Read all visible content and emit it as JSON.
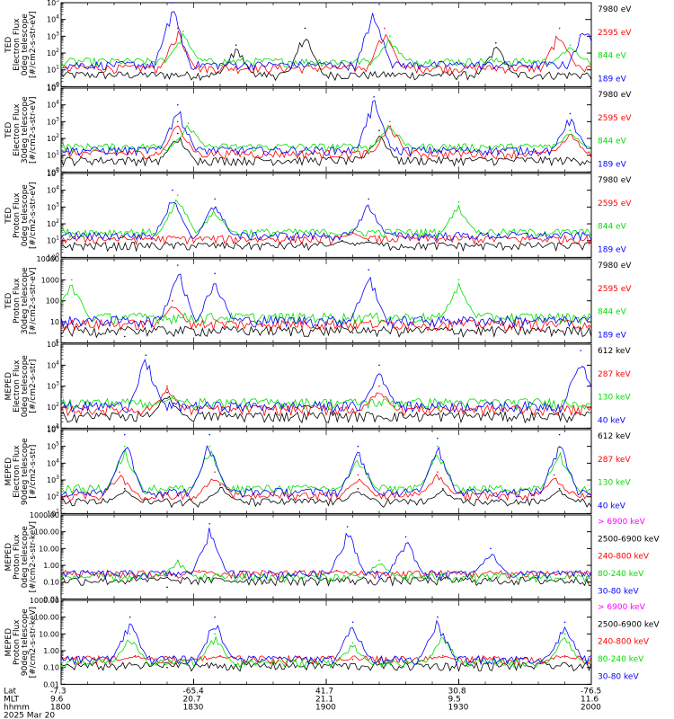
{
  "chart_data": [
    {
      "type": "line",
      "ylabel": [
        "TED",
        "Electron Flux",
        "0deg telescope",
        "[#/cm2-s-str-eV]"
      ],
      "yscale": "log",
      "ylim": [
        1,
        100000
      ],
      "y_ticks": [
        "10^0",
        "10^1",
        "10^2",
        "10^3",
        "10^4",
        "10^5"
      ],
      "series": [
        {
          "name": "7980 eV",
          "color": "#000000",
          "spikes": [
            [
              0.33,
              300
            ],
            [
              0.46,
              3000
            ],
            [
              0.82,
              400
            ]
          ]
        },
        {
          "name": "2595 eV",
          "color": "#ff0000",
          "spikes": [
            [
              0.22,
              3000
            ],
            [
              0.61,
              3000
            ],
            [
              0.94,
              3000
            ]
          ]
        },
        {
          "name": "844 eV",
          "color": "#00dd00",
          "spikes": [
            [
              0.23,
              2000
            ],
            [
              0.62,
              1000
            ],
            [
              0.96,
              300
            ]
          ]
        },
        {
          "name": "189 eV",
          "color": "#0000ff",
          "spikes": [
            [
              0.21,
              100000
            ],
            [
              0.59,
              100000
            ],
            [
              0.99,
              10000
            ]
          ]
        }
      ]
    },
    {
      "type": "line",
      "ylabel": [
        "TED",
        "Electron Flux",
        "30deg telescope",
        "[#/cm2-s-str-eV]"
      ],
      "yscale": "log",
      "ylim": [
        1,
        100000
      ],
      "y_ticks": [
        "10^0",
        "10^1",
        "10^2",
        "10^3",
        "10^4",
        "10^5"
      ],
      "series": [
        {
          "name": "7980 eV",
          "color": "#000000",
          "spikes": [
            [
              0.22,
              200
            ],
            [
              0.6,
              300
            ]
          ]
        },
        {
          "name": "2595 eV",
          "color": "#ff0000",
          "spikes": [
            [
              0.22,
              1000
            ],
            [
              0.62,
              1000
            ],
            [
              0.96,
              300
            ]
          ]
        },
        {
          "name": "844 eV",
          "color": "#00dd00",
          "spikes": [
            [
              0.24,
              800
            ],
            [
              0.62,
              1000
            ],
            [
              0.96,
              300
            ]
          ]
        },
        {
          "name": "189 eV",
          "color": "#0000ff",
          "spikes": [
            [
              0.22,
              10000
            ],
            [
              0.59,
              30000
            ],
            [
              0.96,
              3000
            ]
          ]
        }
      ]
    },
    {
      "type": "line",
      "ylabel": [
        "TED",
        "Proton Flux",
        "0deg telescope",
        "[#/cm2-s-str-eV]"
      ],
      "yscale": "log",
      "ylim": [
        1,
        100000
      ],
      "y_ticks": [
        "10^0",
        "10^1",
        "10^2",
        "10^3",
        "10^4",
        "10^5"
      ],
      "series": [
        {
          "name": "7980 eV",
          "color": "#000000",
          "spikes": [
            [
              0.53,
              10
            ],
            [
              0.58,
              10
            ]
          ]
        },
        {
          "name": "2595 eV",
          "color": "#ff0000",
          "spikes": [
            [
              0.55,
              30
            ]
          ]
        },
        {
          "name": "844 eV",
          "color": "#00dd00",
          "spikes": [
            [
              0.22,
              5000
            ],
            [
              0.29,
              1000
            ],
            [
              0.75,
              2000
            ]
          ]
        },
        {
          "name": "189 eV",
          "color": "#0000ff",
          "spikes": [
            [
              0.21,
              10000
            ],
            [
              0.29,
              3000
            ],
            [
              0.58,
              3000
            ]
          ]
        }
      ]
    },
    {
      "type": "line",
      "ylabel": [
        "TED",
        "Proton Flux",
        "30deg telescope",
        "[#/cm2-s-str-eV]"
      ],
      "yscale": "log",
      "ylim": [
        1,
        10000
      ],
      "y_ticks": [
        "1",
        "10",
        "100",
        "1000",
        "10000"
      ],
      "series": [
        {
          "name": "7980 eV",
          "color": "#000000",
          "spikes": [
            [
              0.12,
              2
            ],
            [
              0.55,
              3
            ]
          ]
        },
        {
          "name": "2595 eV",
          "color": "#ff0000",
          "spikes": [
            [
              0.21,
              100
            ]
          ]
        },
        {
          "name": "844 eV",
          "color": "#00dd00",
          "spikes": [
            [
              0.02,
              1000
            ],
            [
              0.75,
              1000
            ]
          ]
        },
        {
          "name": "189 eV",
          "color": "#0000ff",
          "spikes": [
            [
              0.22,
              5000
            ],
            [
              0.29,
              2000
            ],
            [
              0.58,
              3000
            ]
          ]
        }
      ]
    },
    {
      "type": "line",
      "ylabel": [
        "MEPED",
        "Electron Flux",
        "0deg telescope",
        "[#/cm2-s-str]"
      ],
      "yscale": "log",
      "ylim": [
        10,
        100000
      ],
      "y_ticks": [
        "10^1",
        "10^2",
        "10^3",
        "10^4",
        "10^5"
      ],
      "series": [
        {
          "name": "612 keV",
          "color": "#000000",
          "spikes": [
            [
              0.2,
              500
            ]
          ]
        },
        {
          "name": "287 keV",
          "color": "#ff0000",
          "spikes": [
            [
              0.2,
              1000
            ],
            [
              0.6,
              1000
            ]
          ]
        },
        {
          "name": "130 keV",
          "color": "#00dd00",
          "spikes": [
            [
              0.21,
              300
            ]
          ]
        },
        {
          "name": "40 keV",
          "color": "#0000ff",
          "spikes": [
            [
              0.16,
              30000
            ],
            [
              0.6,
              10000
            ],
            [
              0.98,
              50000
            ]
          ]
        }
      ]
    },
    {
      "type": "line",
      "ylabel": [
        "MEPED",
        "Electron Flux",
        "90deg telescope",
        "[#/cm2-s-str]"
      ],
      "yscale": "log",
      "ylim": [
        10,
        1000000
      ],
      "y_ticks": [
        "10^1",
        "10^2",
        "10^3",
        "10^4",
        "10^5",
        "10^6"
      ],
      "series": [
        {
          "name": "612 keV",
          "color": "#000000",
          "spikes": [
            [
              0.12,
              300
            ],
            [
              0.3,
              500
            ],
            [
              0.56,
              300
            ],
            [
              0.72,
              300
            ],
            [
              0.94,
              300
            ]
          ]
        },
        {
          "name": "287 keV",
          "color": "#ff0000",
          "spikes": [
            [
              0.11,
              3000
            ],
            [
              0.29,
              3000
            ],
            [
              0.56,
              2000
            ],
            [
              0.71,
              3000
            ],
            [
              0.93,
              2000
            ]
          ]
        },
        {
          "name": "130 keV",
          "color": "#00dd00",
          "spikes": [
            [
              0.12,
              100000
            ],
            [
              0.28,
              100000
            ],
            [
              0.56,
              30000
            ],
            [
              0.71,
              100000
            ],
            [
              0.94,
              100000
            ]
          ]
        },
        {
          "name": "40 keV",
          "color": "#0000ff",
          "spikes": [
            [
              0.12,
              500000
            ],
            [
              0.28,
              500000
            ],
            [
              0.56,
              100000
            ],
            [
              0.71,
              300000
            ],
            [
              0.94,
              500000
            ]
          ]
        }
      ]
    },
    {
      "type": "line",
      "ylabel": [
        "MEPED",
        "Proton Flux",
        "0deg telescope",
        "[#/cm2-s-str-keV]"
      ],
      "yscale": "log",
      "ylim": [
        0.01,
        1000
      ],
      "y_ticks": [
        "0.01",
        "0.10",
        "1.00",
        "10.00",
        "100.00",
        "1000.00"
      ],
      "series": [
        {
          "name": "> 6900 keV",
          "color": "#ff00ff",
          "spikes": []
        },
        {
          "name": "2500-6900 keV",
          "color": "#000000",
          "spikes": [
            [
              0.2,
              0.05
            ]
          ]
        },
        {
          "name": "240-800 keV",
          "color": "#ff0000",
          "spikes": [
            [
              0.26,
              0.5
            ],
            [
              0.52,
              0.5
            ]
          ]
        },
        {
          "name": "80-240 keV",
          "color": "#00dd00",
          "spikes": [
            [
              0.22,
              2
            ],
            [
              0.6,
              2
            ]
          ]
        },
        {
          "name": "30-80 keV",
          "color": "#0000ff",
          "spikes": [
            [
              0.28,
              300
            ],
            [
              0.54,
              200
            ],
            [
              0.65,
              50
            ],
            [
              0.81,
              10
            ]
          ]
        }
      ]
    },
    {
      "type": "line",
      "ylabel": [
        "MEPED",
        "Proton Flux",
        "90deg telescope",
        "[#/cm2-s-str-keV]"
      ],
      "yscale": "log",
      "ylim": [
        0.01,
        1000
      ],
      "y_ticks": [
        "0.01",
        "0.10",
        "1.00",
        "10.00",
        "100.00",
        "1000.00"
      ],
      "series": [
        {
          "name": "> 6900 keV",
          "color": "#ff00ff",
          "spikes": []
        },
        {
          "name": "2500-6900 keV",
          "color": "#000000",
          "spikes": [
            [
              0.2,
              0.1
            ]
          ]
        },
        {
          "name": "240-800 keV",
          "color": "#ff0000",
          "spikes": [
            [
              0.14,
              0.5
            ],
            [
              0.3,
              0.5
            ],
            [
              0.55,
              0.3
            ],
            [
              0.72,
              0.5
            ],
            [
              0.95,
              0.5
            ]
          ]
        },
        {
          "name": "80-240 keV",
          "color": "#00dd00",
          "spikes": [
            [
              0.13,
              10
            ],
            [
              0.29,
              10
            ],
            [
              0.55,
              3
            ],
            [
              0.72,
              10
            ],
            [
              0.95,
              10
            ]
          ]
        },
        {
          "name": "30-80 keV",
          "color": "#0000ff",
          "spikes": [
            [
              0.13,
              100
            ],
            [
              0.29,
              100
            ],
            [
              0.55,
              50
            ],
            [
              0.71,
              100
            ],
            [
              0.95,
              50
            ]
          ]
        }
      ]
    }
  ],
  "x_axis": {
    "row_labels": [
      "Lat",
      "MLT",
      "hhmm"
    ],
    "date": "2025 Mar 20",
    "ticks": [
      {
        "lat": "-7.3",
        "mlt": "9.6",
        "hhmm": "1800"
      },
      {
        "lat": "-65.4",
        "mlt": "20.7",
        "hhmm": "1830"
      },
      {
        "lat": "41.7",
        "mlt": "21.1",
        "hhmm": "1900"
      },
      {
        "lat": "30.8",
        "mlt": "9.5",
        "hhmm": "1930"
      },
      {
        "lat": "-76.5",
        "mlt": "11.6",
        "hhmm": "2000"
      }
    ]
  }
}
